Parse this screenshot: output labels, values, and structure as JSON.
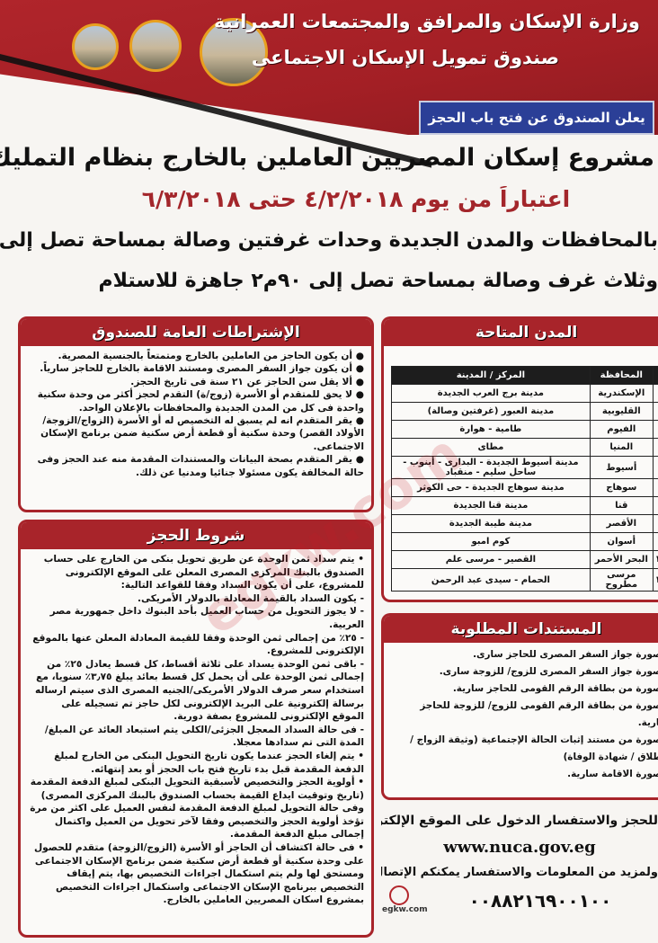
{
  "header": {
    "ministry": "وزارة الإسكان والمرافق والمجتمعات العمرانية",
    "fund": "صندوق تمويل الإسكان الاجتماعى",
    "badge": "يعلن الصندوق عن فتح باب الحجز"
  },
  "headline": {
    "title": "مشروع إسكان المصريين العاملين بالخارج بنظام التمليك",
    "dates": "اعتباراً من يوم ٤/٢/٢٠١٨ حتى ٦/٣/٢٠١٨",
    "line1": "بالمحافظات والمدن الجديدة وحدات غرفتين وصالة بمساحة تصل إلى ٧٥م٢",
    "line2": "وثلاث غرف وصالة بمساحة تصل إلى ٩٠م٢ جاهزة للاستلام"
  },
  "general_conditions": {
    "title": "الإشتراطات العامة للصندوق",
    "items": [
      "أن يكون الحاجز من العاملين بالخارج ومتمتعاً بالجنسية المصرية.",
      "أن يكون جواز السفر المصرى ومستند الاقامة بالخارج للحاجز سارياً.",
      "ألا يقل سن الحاجز عن ٢١ سنة فى تاريخ الحجز.",
      "لا يحق للمتقدم أو الأسرة (زوج/ة) التقدم لحجز أكثر من وحدة سكنية واحدة فى كل من المدن الجديدة والمحافظات بالإعلان الواحد.",
      "يقر المتقدم انه لم يسبق له التخصيص له أو الأسرة (الزواج/الزوجة/ الأولاد القصر) وحدة سكنية أو قطعة أرض سكنية ضمن برنامج الإسكان الاجتماعى.",
      "يقر المتقدم بصحة البيانات والمستندات المقدمة منه عند الحجز وفى حالة المخالفة يكون مسئولا جنائيا ومدنيا عن ذلك."
    ]
  },
  "booking_conditions": {
    "title": "شروط الحجز",
    "items": [
      "• يتم سداد ثمن الوحدة عن طريق تحويل بنكى من الخارج على حساب الصندوق بالبنك المركزى المصرى المعلن على الموقع الإلكترونى للمشروع، على أن يكون السداد وفقا للقواعد التالية:",
      "- يكون السداد بالقيمة المعادلة بالدولار الأمريكى.",
      "- لا يجوز التحويل من حساب العميل بأحد البنوك داخل جمهورية مصر العربية.",
      "- ٢٥٪ من إجمالى ثمن الوحدة وفقا للقيمة المعادلة المعلن عنها بالموقع الإلكترونى للمشروع.",
      "- باقى ثمن الوحدة يسداد على ثلاثة أقساط، كل قسط يعادل ٢٥٪ من إجمالى ثمن الوحدة على أن يحمل كل قسط بعائد يبلغ ٣٫٧٥٪ سنويا، مع استخدام سعر صرف الدولار الأمريكى/الجنيه المصرى الذى سيتم ارساله برسالة إلكترونية على البريد الإلكترونى لكل حاجز تم تسجيله على الموقع الإلكترونى للمشروع بصفة دورية.",
      "- فى حالة السداد المعجل الجزئى/الكلى يتم استبعاد العائد عن المبلغ/المدة التى تم سدادها معجلا.",
      "• يتم إلغاء الحجز عندما يكون تاريخ التحويل البنكى من الخارج لمبلغ الدفعة المقدمة قبل بدء تاريخ فتح باب الحجز أو بعد إنتهائه.",
      "• أولوية الحجز والتخصيص لأسبقية التحويل البنكى لمبلغ الدفعة المقدمة (تاريخ وتوقيت ايداع القيمة بحساب الصندوق بالبنك المركزى المصرى) وفى حالة التحويل لمبلغ الدفعة المقدمة لنفس العميل على اكثر من مرة تؤخذ أولوية الحجز والتخصيص وفقا لآخر تحويل من العميل واكتمال إجمالى مبلغ الدفعة المقدمة.",
      "• فى حالة اكتشاف أن الحاجز أو الأسرة (الزوج/الزوجة) متقدم للحصول على وحدة سكنية أو قطعة أرض سكنية ضمن برنامج الإسكان الاجتماعى ومستحق لها ولم يتم استكمال اجراءات التخصيص بها، يتم إيقاف التخصيص ببرنامج الإسكان الاجتماعى واستكمال اجراءات التخصيص بمشروع اسكان المصريين العاملين بالخارج."
    ]
  },
  "cities": {
    "title": "المدن المتاحة",
    "headers": [
      "",
      "المحافظة",
      "المركز / المدينة"
    ],
    "rows": [
      [
        "١",
        "الإسكندرية",
        "مدينة برج العرب الجديدة"
      ],
      [
        "٢",
        "القليوبية",
        "مدينة العبور (غرفتين وصالة)"
      ],
      [
        "٣",
        "الفيوم",
        "طامية - هوارة"
      ],
      [
        "٤",
        "المنيا",
        "مطاى"
      ],
      [
        "٥",
        "أسيوط",
        "مدينة أسيوط الجديدة - البدارى - أبنوب - ساحل سليم - منقباد"
      ],
      [
        "٦",
        "سوهاج",
        "مدينة سوهاج الجديدة - حى الكوثر"
      ],
      [
        "٧",
        "قنا",
        "مدينة قنا الجديدة"
      ],
      [
        "٨",
        "الأقصر",
        "مدينة طيبة الجديدة"
      ],
      [
        "٩",
        "أسوان",
        "كوم امبو"
      ],
      [
        "١٠",
        "البحر الأحمر",
        "القصير - مرسى علم"
      ],
      [
        "١١",
        "مرسى مطروح",
        "الحمام - سيدى عبد الرحمن"
      ]
    ]
  },
  "documents": {
    "title": "المستندات المطلوبة",
    "items": [
      "- صورة جواز السفر المصرى للحاجز سارى.",
      "- صورة جواز السفر المصرى للزوج/ للزوجة سارى.",
      "- صورة من بطاقة الرقم القومى للحاجز سارية.",
      "- صورة من بطاقة الرقم القومى للزوج/ للزوجة للحاجز سارية.",
      "- صورة من مستند إثبات الحالة الإجتماعية (وثيقة الزواج / الطلاق / شهادة الوفاة)",
      "- صورة الاقامة سارية."
    ]
  },
  "contact": {
    "line1": "للحجز والاستفسار الدخول على الموقع الإلكترونى",
    "url": "www.nuca.gov.eg",
    "line2": "ولمزيد من المعلومات والاستفسار يمكنكم الإتصال على",
    "phone": "٠٠٨٨٢١٦٩٠٠١٠٠"
  },
  "watermark": {
    "logo": "egkw.com",
    "tagline": "مصريون فى الكويت"
  },
  "colors": {
    "red": "#a8242a",
    "blue": "#2b3f97",
    "date_red": "#a3262b"
  }
}
